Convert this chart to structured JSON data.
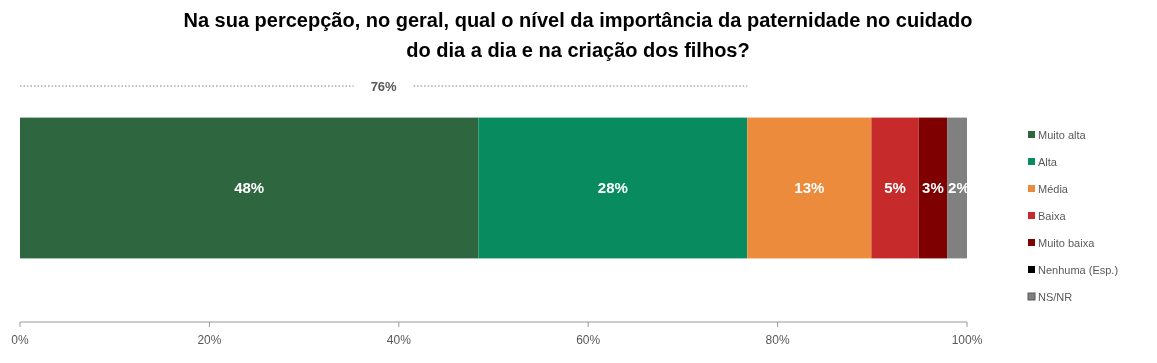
{
  "chart_data": {
    "type": "bar",
    "title": "Na sua percepção, no geral, qual o nível da importância da paternidade no cuidado do dia a dia e na criação dos filhos?",
    "orientation": "horizontal",
    "stacked": true,
    "categories": [
      null
    ],
    "series": [
      {
        "name": "Muito alta",
        "color": "#2e6640",
        "values": [
          48.4
        ],
        "value_labels": [
          "48%"
        ]
      },
      {
        "name": "Alta",
        "color": "#088c5f",
        "values": [
          28.4
        ],
        "value_labels": [
          "28%"
        ]
      },
      {
        "name": "Média",
        "color": "#ec8b3b",
        "values": [
          13.1
        ],
        "value_labels": [
          "13%"
        ]
      },
      {
        "name": "Baixa",
        "color": "#c62a2a",
        "values": [
          5
        ],
        "value_labels": [
          "5%"
        ]
      },
      {
        "name": "Muito baixa",
        "color": "#7f0000",
        "values": [
          3
        ],
        "value_labels": [
          "3%"
        ]
      },
      {
        "name": "Nenhuma (Esp.)",
        "color": "#000000",
        "values": [
          0
        ],
        "value_labels": [
          null
        ]
      },
      {
        "name": "NS/NR",
        "color": "#808080",
        "values": [
          2.1
        ],
        "value_labels": [
          "2%"
        ]
      }
    ],
    "xlim": [
      0,
      100
    ],
    "xticks": [
      {
        "value": 0,
        "label": "0%"
      },
      {
        "value": 20,
        "label": "20%"
      },
      {
        "value": 40,
        "label": "40%"
      },
      {
        "value": 60,
        "label": "60%"
      },
      {
        "value": 80,
        "label": "80%"
      },
      {
        "value": 100,
        "label": "100%"
      }
    ],
    "annotations": [
      "76%"
    ],
    "grid": false,
    "legend": "right"
  }
}
